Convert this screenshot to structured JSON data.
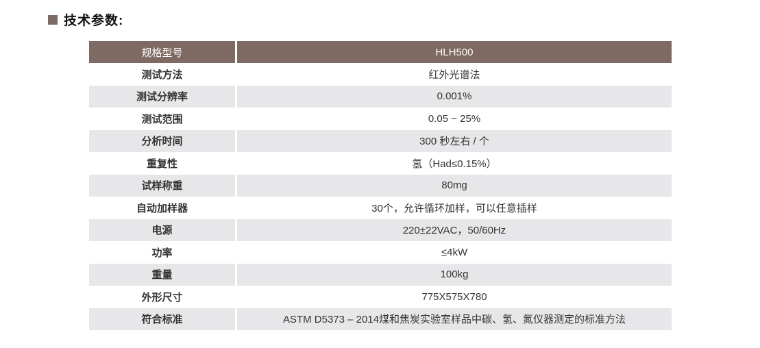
{
  "page": {
    "title": "技术参数:"
  },
  "colors": {
    "accent_brown": "#7e6a62",
    "alt_row_gray": "#e7e7e9",
    "body_text": "#333333",
    "header_text": "#ffffff"
  },
  "table": {
    "header": {
      "label": "规格型号",
      "value": "HLH500"
    },
    "rows": [
      {
        "label": "测试方法",
        "value": "红外光谱法"
      },
      {
        "label": "测试分辨率",
        "value": "0.001%"
      },
      {
        "label": "测试范围",
        "value": "0.05 ~ 25%"
      },
      {
        "label": "分析时间",
        "value": "300 秒左右 / 个"
      },
      {
        "label": "重复性",
        "value": "氢（Had≤0.15%）"
      },
      {
        "label": "试样称重",
        "value": "80mg"
      },
      {
        "label": "自动加样器",
        "value": "30个，允许循环加样，可以任意插样"
      },
      {
        "label": "电源",
        "value": "220±22VAC，50/60Hz"
      },
      {
        "label": "功率",
        "value": "≤4kW"
      },
      {
        "label": "重量",
        "value": "100kg"
      },
      {
        "label": "外形尺寸",
        "value": "775X575X780"
      },
      {
        "label": "符合标准",
        "value": "ASTM D5373 – 2014煤和焦炭实验室样品中碳、氢、氮仪器测定的标准方法"
      }
    ]
  }
}
